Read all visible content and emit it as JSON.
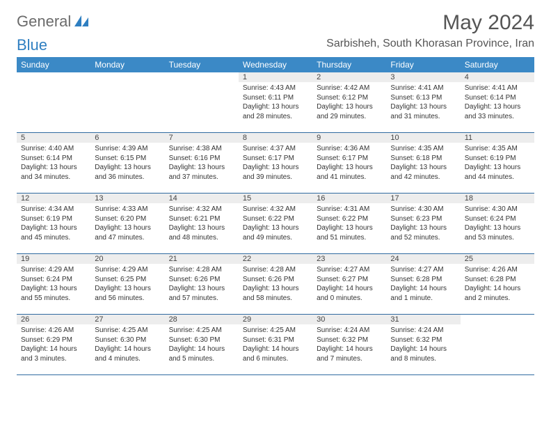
{
  "brand": {
    "word1": "General",
    "word2": "Blue"
  },
  "title": "May 2024",
  "location": "Sarbisheh, South Khorasan Province, Iran",
  "colors": {
    "header_bg": "#3b89c6",
    "header_text": "#ffffff",
    "daynum_bg": "#ededed",
    "week_border": "#2f6aa0",
    "logo_gray": "#6b6b6b",
    "logo_blue": "#2f7fc1"
  },
  "day_labels": [
    "Sunday",
    "Monday",
    "Tuesday",
    "Wednesday",
    "Thursday",
    "Friday",
    "Saturday"
  ],
  "weeks": [
    [
      {
        "n": "",
        "sr": "",
        "ss": "",
        "dl": ""
      },
      {
        "n": "",
        "sr": "",
        "ss": "",
        "dl": ""
      },
      {
        "n": "",
        "sr": "",
        "ss": "",
        "dl": ""
      },
      {
        "n": "1",
        "sr": "Sunrise: 4:43 AM",
        "ss": "Sunset: 6:11 PM",
        "dl": "Daylight: 13 hours and 28 minutes."
      },
      {
        "n": "2",
        "sr": "Sunrise: 4:42 AM",
        "ss": "Sunset: 6:12 PM",
        "dl": "Daylight: 13 hours and 29 minutes."
      },
      {
        "n": "3",
        "sr": "Sunrise: 4:41 AM",
        "ss": "Sunset: 6:13 PM",
        "dl": "Daylight: 13 hours and 31 minutes."
      },
      {
        "n": "4",
        "sr": "Sunrise: 4:41 AM",
        "ss": "Sunset: 6:14 PM",
        "dl": "Daylight: 13 hours and 33 minutes."
      }
    ],
    [
      {
        "n": "5",
        "sr": "Sunrise: 4:40 AM",
        "ss": "Sunset: 6:14 PM",
        "dl": "Daylight: 13 hours and 34 minutes."
      },
      {
        "n": "6",
        "sr": "Sunrise: 4:39 AM",
        "ss": "Sunset: 6:15 PM",
        "dl": "Daylight: 13 hours and 36 minutes."
      },
      {
        "n": "7",
        "sr": "Sunrise: 4:38 AM",
        "ss": "Sunset: 6:16 PM",
        "dl": "Daylight: 13 hours and 37 minutes."
      },
      {
        "n": "8",
        "sr": "Sunrise: 4:37 AM",
        "ss": "Sunset: 6:17 PM",
        "dl": "Daylight: 13 hours and 39 minutes."
      },
      {
        "n": "9",
        "sr": "Sunrise: 4:36 AM",
        "ss": "Sunset: 6:17 PM",
        "dl": "Daylight: 13 hours and 41 minutes."
      },
      {
        "n": "10",
        "sr": "Sunrise: 4:35 AM",
        "ss": "Sunset: 6:18 PM",
        "dl": "Daylight: 13 hours and 42 minutes."
      },
      {
        "n": "11",
        "sr": "Sunrise: 4:35 AM",
        "ss": "Sunset: 6:19 PM",
        "dl": "Daylight: 13 hours and 44 minutes."
      }
    ],
    [
      {
        "n": "12",
        "sr": "Sunrise: 4:34 AM",
        "ss": "Sunset: 6:19 PM",
        "dl": "Daylight: 13 hours and 45 minutes."
      },
      {
        "n": "13",
        "sr": "Sunrise: 4:33 AM",
        "ss": "Sunset: 6:20 PM",
        "dl": "Daylight: 13 hours and 47 minutes."
      },
      {
        "n": "14",
        "sr": "Sunrise: 4:32 AM",
        "ss": "Sunset: 6:21 PM",
        "dl": "Daylight: 13 hours and 48 minutes."
      },
      {
        "n": "15",
        "sr": "Sunrise: 4:32 AM",
        "ss": "Sunset: 6:22 PM",
        "dl": "Daylight: 13 hours and 49 minutes."
      },
      {
        "n": "16",
        "sr": "Sunrise: 4:31 AM",
        "ss": "Sunset: 6:22 PM",
        "dl": "Daylight: 13 hours and 51 minutes."
      },
      {
        "n": "17",
        "sr": "Sunrise: 4:30 AM",
        "ss": "Sunset: 6:23 PM",
        "dl": "Daylight: 13 hours and 52 minutes."
      },
      {
        "n": "18",
        "sr": "Sunrise: 4:30 AM",
        "ss": "Sunset: 6:24 PM",
        "dl": "Daylight: 13 hours and 53 minutes."
      }
    ],
    [
      {
        "n": "19",
        "sr": "Sunrise: 4:29 AM",
        "ss": "Sunset: 6:24 PM",
        "dl": "Daylight: 13 hours and 55 minutes."
      },
      {
        "n": "20",
        "sr": "Sunrise: 4:29 AM",
        "ss": "Sunset: 6:25 PM",
        "dl": "Daylight: 13 hours and 56 minutes."
      },
      {
        "n": "21",
        "sr": "Sunrise: 4:28 AM",
        "ss": "Sunset: 6:26 PM",
        "dl": "Daylight: 13 hours and 57 minutes."
      },
      {
        "n": "22",
        "sr": "Sunrise: 4:28 AM",
        "ss": "Sunset: 6:26 PM",
        "dl": "Daylight: 13 hours and 58 minutes."
      },
      {
        "n": "23",
        "sr": "Sunrise: 4:27 AM",
        "ss": "Sunset: 6:27 PM",
        "dl": "Daylight: 14 hours and 0 minutes."
      },
      {
        "n": "24",
        "sr": "Sunrise: 4:27 AM",
        "ss": "Sunset: 6:28 PM",
        "dl": "Daylight: 14 hours and 1 minute."
      },
      {
        "n": "25",
        "sr": "Sunrise: 4:26 AM",
        "ss": "Sunset: 6:28 PM",
        "dl": "Daylight: 14 hours and 2 minutes."
      }
    ],
    [
      {
        "n": "26",
        "sr": "Sunrise: 4:26 AM",
        "ss": "Sunset: 6:29 PM",
        "dl": "Daylight: 14 hours and 3 minutes."
      },
      {
        "n": "27",
        "sr": "Sunrise: 4:25 AM",
        "ss": "Sunset: 6:30 PM",
        "dl": "Daylight: 14 hours and 4 minutes."
      },
      {
        "n": "28",
        "sr": "Sunrise: 4:25 AM",
        "ss": "Sunset: 6:30 PM",
        "dl": "Daylight: 14 hours and 5 minutes."
      },
      {
        "n": "29",
        "sr": "Sunrise: 4:25 AM",
        "ss": "Sunset: 6:31 PM",
        "dl": "Daylight: 14 hours and 6 minutes."
      },
      {
        "n": "30",
        "sr": "Sunrise: 4:24 AM",
        "ss": "Sunset: 6:32 PM",
        "dl": "Daylight: 14 hours and 7 minutes."
      },
      {
        "n": "31",
        "sr": "Sunrise: 4:24 AM",
        "ss": "Sunset: 6:32 PM",
        "dl": "Daylight: 14 hours and 8 minutes."
      },
      {
        "n": "",
        "sr": "",
        "ss": "",
        "dl": ""
      }
    ]
  ]
}
